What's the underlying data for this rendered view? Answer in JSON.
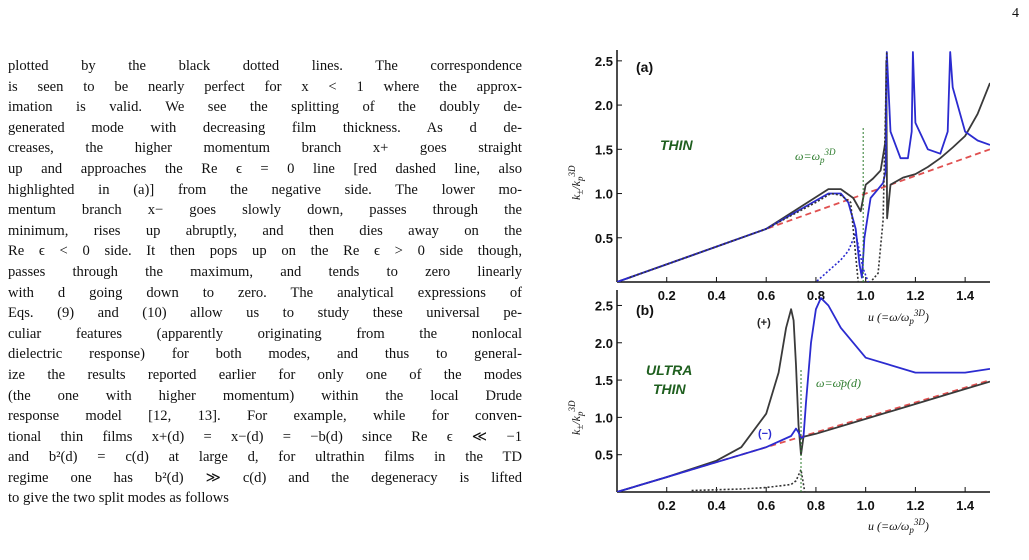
{
  "page": {
    "number": "4"
  },
  "body_text": [
    "plotted by the black dotted lines. The correspondence",
    "is seen to be nearly perfect for x < 1 where the approx-",
    "imation is valid. We see the splitting of the doubly de-",
    "generated mode with decreasing film thickness. As d de-",
    "creases, the higher momentum branch x+ goes straight",
    "up and approaches the Re ϵ = 0 line [red dashed line, also",
    "highlighted in (a)] from the negative side. The lower mo-",
    "mentum branch x− goes slowly down, passes through the",
    "minimum, rises up abruptly, and then dies away on the",
    "Re ϵ < 0 side. It then pops up on the Re ϵ > 0 side though,",
    "passes through the maximum, and tends to zero linearly",
    "with d going down to zero. The analytical expressions of",
    "Eqs. (9) and (10) allow us to study these universal pe-",
    "culiar features (apparently originating from the nonlocal",
    "dielectric response) for both modes, and thus to general-",
    "ize the results reported earlier for only one of the modes",
    "(the one with higher momentum) within the local Drude",
    "response model [12, 13]. For example, while for conven-",
    "tional thin films x+(d) = x−(d) = −b(d) since Re ϵ ≪ −1",
    "and b²(d) = c(d) at large d, for ultrathin films in the TD",
    "regime one has b²(d) ≫ c(d) and the degeneracy is lifted",
    "to give the two split modes as follows"
  ],
  "figure": {
    "colors": {
      "plus_branch": "#3a3a3a",
      "minus_branch": "#2b2bd0",
      "re_eps_zero": "#e05050",
      "approx": "#333333",
      "omega_marker": "#2a7a2a"
    },
    "panel_a": {
      "label": "(a)",
      "regime": "THIN",
      "omega_label": "ω=ωp3D",
      "x_axis_label": "u (=ω/ωp3D)",
      "y_axis_label": "k±/kp3D"
    },
    "panel_b": {
      "label": "(b)",
      "regime_line1": "ULTRA",
      "regime_line2": "THIN",
      "omega_label": "ω=ω̄p(d)",
      "plus_label": "(+)",
      "minus_label": "(−)",
      "x_axis_label": "u (=ω/ωp3D)",
      "y_axis_label": "k±/kp3D"
    }
  },
  "chart_data": [
    {
      "type": "line",
      "panel": "(a)",
      "x_ticks": [
        "0.2",
        "0.4",
        "0.6",
        "0.8",
        "1.0",
        "1.2",
        "1.4"
      ],
      "y_ticks": [
        "0.5",
        "1.0",
        "1.5",
        "2.0",
        "2.5"
      ],
      "xlim": [
        0,
        1.5
      ],
      "ylim": [
        0,
        2.6
      ],
      "marker_x": 0.99,
      "series": [
        {
          "style": "red-dashed",
          "x": [
            0,
            1.5
          ],
          "y": [
            0,
            1.5
          ]
        },
        {
          "style": "dark-solid",
          "x": [
            0,
            0.3,
            0.6,
            0.8,
            0.85,
            0.9,
            0.95,
            0.98,
            1.0,
            1.03,
            1.06,
            1.08,
            1.083,
            1.086,
            1.1,
            1.15,
            1.2,
            1.25,
            1.3,
            1.35,
            1.4,
            1.45,
            1.5
          ],
          "y": [
            0,
            0.3,
            0.6,
            0.96,
            1.05,
            1.05,
            0.95,
            0.8,
            1.1,
            1.17,
            1.26,
            1.6,
            2.5,
            0.72,
            1.1,
            1.18,
            1.22,
            1.3,
            1.4,
            1.52,
            1.65,
            1.9,
            2.25
          ]
        },
        {
          "style": "blue-solid",
          "x": [
            0,
            0.3,
            0.6,
            0.8,
            0.85,
            0.9,
            0.93,
            0.96,
            0.975,
            0.985,
            0.995,
            1.02,
            1.05,
            1.07,
            1.08,
            1.085,
            1.1,
            1.14,
            1.17,
            1.185,
            1.19,
            1.2,
            1.25,
            1.3,
            1.33,
            1.34,
            1.35,
            1.4,
            1.45,
            1.5
          ],
          "y": [
            0,
            0.3,
            0.6,
            0.92,
            1.0,
            1.0,
            0.9,
            0.6,
            0.2,
            0.05,
            0.5,
            0.95,
            1.05,
            1.12,
            1.25,
            2.6,
            1.7,
            1.4,
            1.4,
            1.7,
            2.6,
            1.8,
            1.5,
            1.45,
            1.7,
            2.6,
            2.2,
            1.7,
            1.6,
            1.55
          ]
        },
        {
          "style": "blue-dotted",
          "x": [
            0.78,
            0.82,
            0.86,
            0.9,
            0.93,
            0.96,
            0.99,
            1.01
          ],
          "y": [
            -0.05,
            0.05,
            0.15,
            0.25,
            0.35,
            0.55,
            0.15,
            0.0
          ]
        },
        {
          "style": "black-dotted",
          "x": [
            0.05,
            0.3,
            0.6,
            0.8,
            0.86,
            0.9,
            0.94,
            0.97,
            1.0,
            1.02,
            1.05,
            1.07,
            1.085
          ],
          "y": [
            0.05,
            0.3,
            0.6,
            0.9,
            1.0,
            0.98,
            0.9,
            0.0,
            0.0,
            0.0,
            0.1,
            0.7,
            2.6
          ]
        }
      ]
    },
    {
      "type": "line",
      "panel": "(b)",
      "x_ticks": [
        "0.2",
        "0.4",
        "0.6",
        "0.8",
        "1.0",
        "1.2",
        "1.4"
      ],
      "y_ticks": [
        "0.5",
        "1.0",
        "1.5",
        "2.0",
        "2.5"
      ],
      "xlim": [
        0,
        1.5
      ],
      "ylim": [
        0,
        2.6
      ],
      "marker_x": 0.74,
      "series": [
        {
          "style": "red-dashed",
          "x": [
            0,
            1.5
          ],
          "y": [
            0,
            1.5
          ]
        },
        {
          "style": "dark-solid",
          "x": [
            0,
            0.2,
            0.4,
            0.5,
            0.6,
            0.65,
            0.68,
            0.7,
            0.71,
            0.72,
            0.73,
            0.74,
            0.75,
            0.8,
            1.0,
            1.2,
            1.4,
            1.5
          ],
          "y": [
            0,
            0.2,
            0.42,
            0.6,
            1.05,
            1.6,
            2.2,
            2.45,
            2.3,
            1.7,
            0.9,
            0.5,
            0.74,
            0.78,
            0.98,
            1.18,
            1.38,
            1.48
          ]
        },
        {
          "style": "blue-solid",
          "x": [
            0,
            0.2,
            0.4,
            0.6,
            0.7,
            0.72,
            0.73,
            0.74,
            0.75,
            0.76,
            0.78,
            0.8,
            0.82,
            0.85,
            0.9,
            1.0,
            1.2,
            1.4,
            1.5
          ],
          "y": [
            0,
            0.2,
            0.4,
            0.6,
            0.75,
            0.85,
            0.8,
            0.72,
            0.74,
            1.2,
            2.0,
            2.45,
            2.6,
            2.5,
            2.2,
            1.8,
            1.6,
            1.6,
            1.65
          ]
        },
        {
          "style": "black-dotted",
          "x": [
            0.3,
            0.5,
            0.6,
            0.65,
            0.7,
            0.72,
            0.74,
            0.76,
            0.78
          ],
          "y": [
            0.02,
            0.04,
            0.06,
            0.08,
            0.1,
            0.15,
            0.3,
            -0.1,
            -0.3
          ]
        }
      ]
    }
  ]
}
